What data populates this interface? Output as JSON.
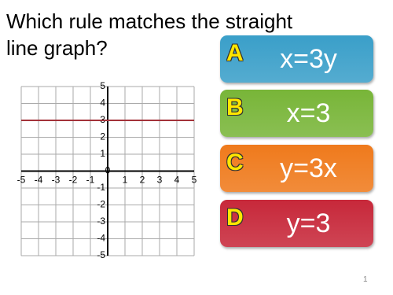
{
  "question": "Which rule matches the straight line graph?",
  "graph": {
    "xlim": [
      -5,
      5
    ],
    "ylim": [
      -5,
      5
    ],
    "xticks": [
      -5,
      -4,
      -3,
      -2,
      -1,
      0,
      1,
      2,
      3,
      4,
      5
    ],
    "yticks": [
      -5,
      -4,
      -3,
      -2,
      -1,
      1,
      2,
      3,
      4,
      5
    ],
    "line_y": 3,
    "line_color": "#a3323a"
  },
  "options": [
    {
      "letter": "A",
      "text": "x=3y",
      "color": "#3a9fc9"
    },
    {
      "letter": "B",
      "text": "x=3",
      "color": "#78b538"
    },
    {
      "letter": "C",
      "text": "y=3x",
      "color": "#ef7a1c"
    },
    {
      "letter": "D",
      "text": "y=3",
      "color": "#c7283a"
    }
  ],
  "slide_number": "1"
}
